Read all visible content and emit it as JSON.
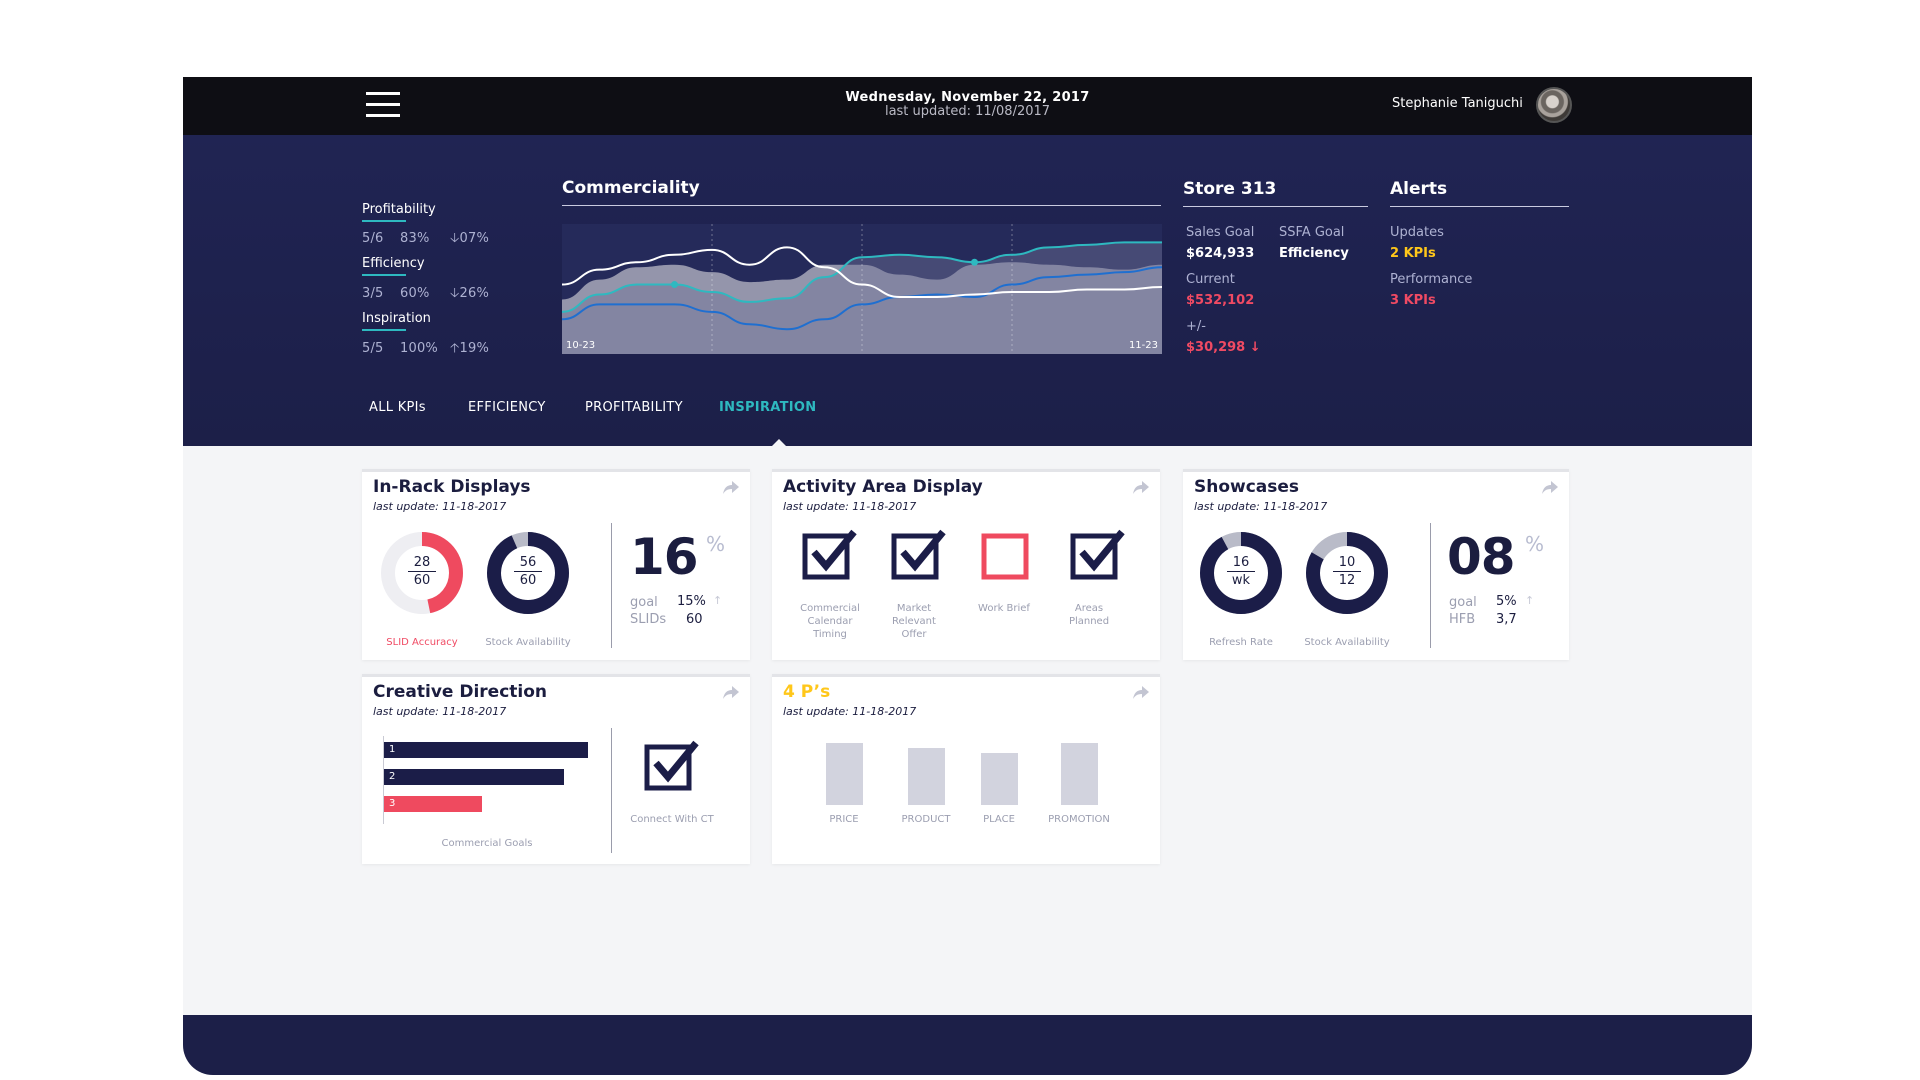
{
  "topbar": {
    "date": "Wednesday, November 22, 2017",
    "last_updated": "last updated: 11/08/2017",
    "user_name": "Stephanie Taniguchi"
  },
  "kpis": [
    {
      "label": "Profitability",
      "score": "5/6",
      "pct": "83%",
      "delta": "07%",
      "direction": "down"
    },
    {
      "label": "Efficiency",
      "score": "3/5",
      "pct": "60%",
      "delta": "26%",
      "direction": "down"
    },
    {
      "label": "Inspiration",
      "score": "5/5",
      "pct": "100%",
      "delta": "19%",
      "direction": "up"
    }
  ],
  "commerciality": {
    "title": "Commerciality",
    "x_start": "10-23",
    "x_end": "11-23"
  },
  "chart_data": {
    "type": "area",
    "title": "Commerciality",
    "x_labels": [
      "10-23",
      "11-23"
    ],
    "x": [
      0,
      1,
      2,
      3,
      4,
      5,
      6,
      7,
      8,
      9,
      10,
      11,
      12,
      13,
      14,
      15,
      16
    ],
    "series": [
      {
        "values": [
          44,
          60,
          70,
          72,
          66,
          58,
          60,
          72,
          72,
          64,
          60,
          72,
          74,
          72,
          70,
          68,
          72
        ]
      },
      {
        "values": [
          34,
          48,
          56,
          56,
          50,
          42,
          45,
          62,
          78,
          80,
          78,
          74,
          80,
          86,
          88,
          90,
          90
        ]
      },
      {
        "values": [
          56,
          68,
          74,
          80,
          84,
          72,
          86,
          70,
          56,
          46,
          46,
          48,
          50,
          50,
          52,
          52,
          54
        ]
      },
      {
        "values": [
          28,
          40,
          40,
          40,
          34,
          24,
          20,
          28,
          40,
          46,
          48,
          46,
          56,
          62,
          64,
          66,
          70
        ]
      }
    ],
    "markers": [
      {
        "series": 1,
        "x": 3
      },
      {
        "series": 1,
        "x": 11
      }
    ],
    "colors": [
      "#9a9bb0",
      "#2eb9c0",
      "#ffffff",
      "#1f6fd0"
    ],
    "ylim": [
      0,
      100
    ]
  },
  "store": {
    "title": "Store 313",
    "sales_goal_label": "Sales Goal",
    "sales_goal_value": "$624,933",
    "ssfa_label": "SSFA Goal",
    "ssfa_value": "Efficiency",
    "current_label": "Current",
    "current_value": "$532,102",
    "diff_label": "+/-",
    "diff_value": "$30,298 ↓"
  },
  "alerts": {
    "title": "Alerts",
    "updates_label": "Updates",
    "updates_value": "2 KPIs",
    "performance_label": "Performance",
    "performance_value": "3 KPIs"
  },
  "tabs": [
    "ALL KPIs",
    "EFFICIENCY",
    "PROFITABILITY",
    "INSPIRATION"
  ],
  "active_tab": "INSPIRATION",
  "cards": {
    "in_rack": {
      "title": "In-Rack Displays",
      "updated": "last update: 11-18-2017",
      "donut1": {
        "top": "28",
        "bottom": "60",
        "caption": "SLID Accuracy",
        "fraction": 0.467
      },
      "donut2": {
        "top": "56",
        "bottom": "60",
        "caption": "Stock Availability",
        "fraction": 0.933
      },
      "big_value": "16",
      "pct_sign": "%",
      "goal_label": "goal",
      "goal_value": "15%",
      "slids_label": "SLIDs",
      "slids_value": "60"
    },
    "activity": {
      "title": "Activity Area Display",
      "updated": "last update: 11-18-2017",
      "items": [
        {
          "caption": "Commercial Calendar Timing",
          "checked": true
        },
        {
          "caption": "Market Relevant Offer",
          "checked": true
        },
        {
          "caption": "Work Brief",
          "checked": false
        },
        {
          "caption": "Areas Planned",
          "checked": true
        }
      ]
    },
    "showcases": {
      "title": "Showcases",
      "updated": "last update: 11-18-2017",
      "donut1": {
        "top": "16",
        "bottom": "wk",
        "caption": "Refresh Rate",
        "fraction": 0.92
      },
      "donut2": {
        "top": "10",
        "bottom": "12",
        "caption": "Stock Availability",
        "fraction": 0.833
      },
      "big_value": "08",
      "pct_sign": "%",
      "goal_label": "goal",
      "goal_value": "5%",
      "hfb_label": "HFB",
      "hfb_value": "3,7"
    },
    "creative": {
      "title": "Creative Direction",
      "updated": "last update: 11-18-2017",
      "bars": [
        {
          "label": "1",
          "value": 100,
          "color": "#1b1d48"
        },
        {
          "label": "2",
          "value": 88,
          "color": "#1b1d48"
        },
        {
          "label": "3",
          "value": 48,
          "color": "#ef4a5f"
        }
      ],
      "bars_caption": "Commercial Goals",
      "check_caption": "Connect With CT"
    },
    "four_p": {
      "title": "4 P’s",
      "updated": "last update: 11-18-2017",
      "items": [
        {
          "label": "PRICE",
          "value": 100
        },
        {
          "label": "PRODUCT",
          "value": 92
        },
        {
          "label": "PLACE",
          "value": 84
        },
        {
          "label": "PROMOTION",
          "value": 100
        }
      ]
    }
  }
}
